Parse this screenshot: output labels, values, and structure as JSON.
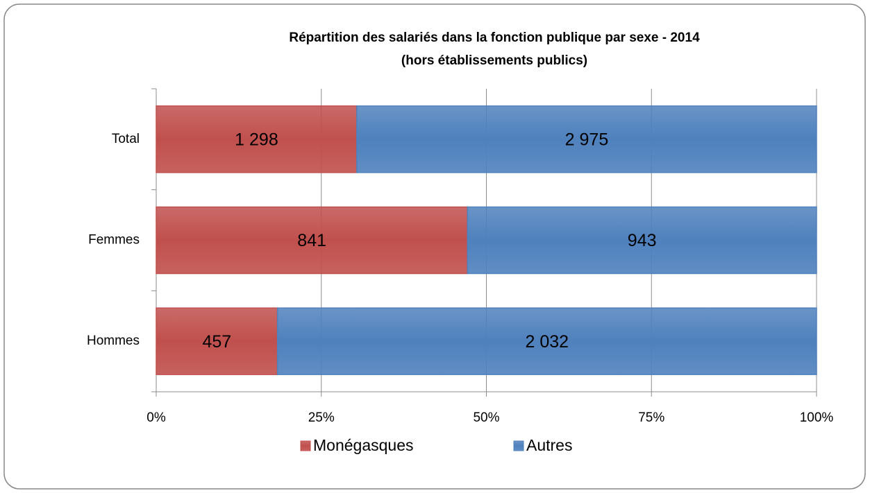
{
  "chart_data": {
    "type": "bar",
    "orientation": "horizontal",
    "stacked": "percent",
    "title": [
      "Répartition des salariés dans la fonction publique par sexe - 2014",
      "(hors établissements publics)"
    ],
    "categories": [
      "Total",
      "Femmes",
      "Hommes"
    ],
    "series": [
      {
        "name": "Monégasques",
        "color": "#c0504d",
        "values": [
          1298,
          841,
          457
        ],
        "value_labels": [
          "1 298",
          "841",
          "457"
        ]
      },
      {
        "name": "Autres",
        "color": "#4f81bd",
        "values": [
          2975,
          943,
          2032
        ],
        "value_labels": [
          "2 975",
          "943",
          "2 032"
        ]
      }
    ],
    "xlim": [
      0,
      100
    ],
    "xticks": [
      {
        "value": 0,
        "label": "0%"
      },
      {
        "value": 25,
        "label": "25%"
      },
      {
        "value": 50,
        "label": "50%"
      },
      {
        "value": 75,
        "label": "75%"
      },
      {
        "value": 100,
        "label": "100%"
      }
    ],
    "grid": true,
    "legend": "bottom"
  }
}
